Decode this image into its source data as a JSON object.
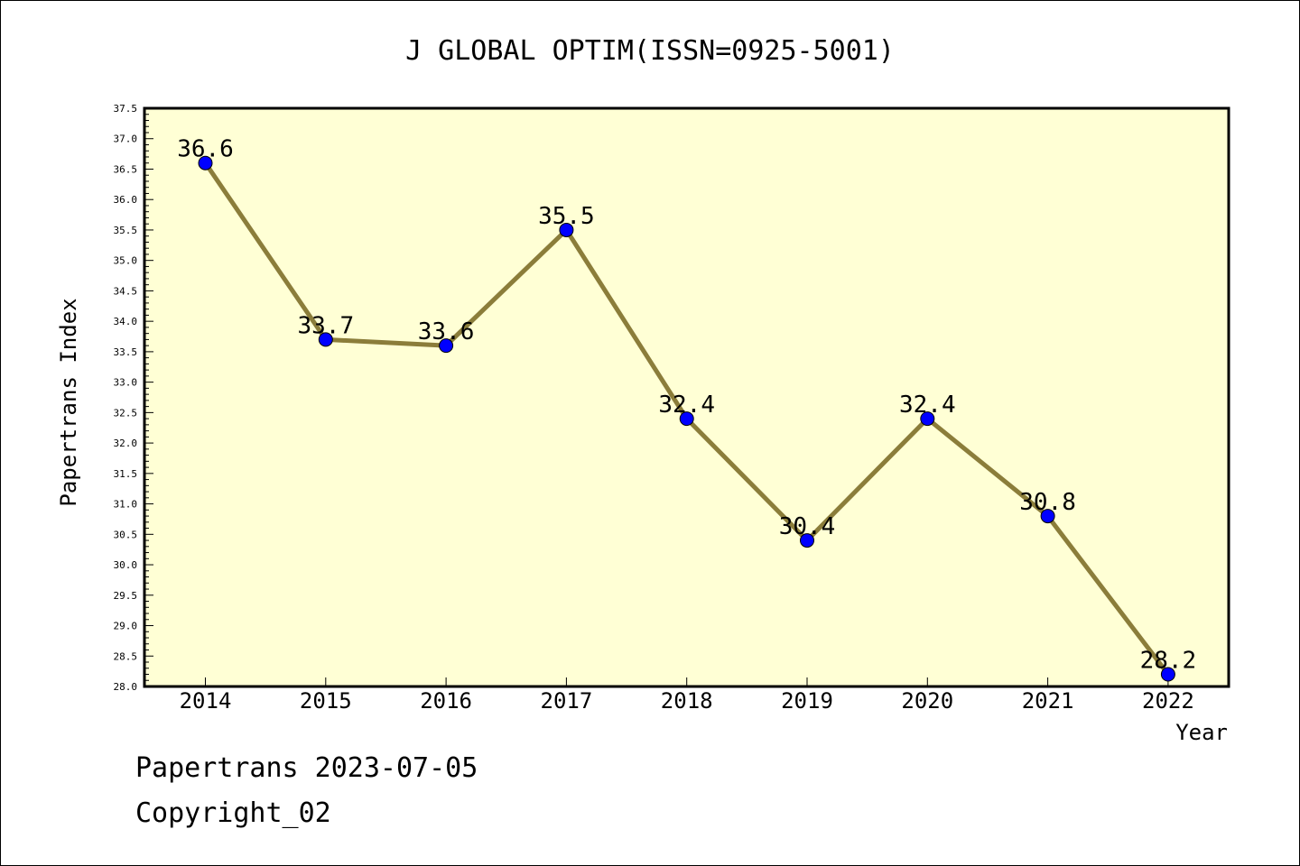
{
  "chart_data": {
    "type": "line",
    "title": "J GLOBAL OPTIM(ISSN=0925-5001)",
    "xlabel": "Year",
    "ylabel": "Papertrans Index",
    "x": [
      "2014",
      "2015",
      "2016",
      "2017",
      "2018",
      "2019",
      "2020",
      "2021",
      "2022"
    ],
    "values": [
      36.6,
      33.7,
      33.6,
      35.5,
      32.4,
      30.4,
      32.4,
      30.8,
      28.2
    ],
    "data_labels": [
      "36.6",
      "33.7",
      "33.6",
      "35.5",
      "32.4",
      "30.4",
      "32.4",
      "30.8",
      "28.2"
    ],
    "ylim": [
      28.0,
      37.5
    ],
    "y_ticks": [
      "28.0",
      "28.5",
      "29.0",
      "29.5",
      "30.0",
      "30.5",
      "31.0",
      "31.5",
      "32.0",
      "32.5",
      "33.0",
      "33.5",
      "34.0",
      "34.5",
      "35.0",
      "35.5",
      "36.0",
      "36.5",
      "37.0",
      "37.5"
    ],
    "grid": false,
    "legend": "none",
    "colors": {
      "line": "#8b7d3a",
      "marker": "#0000ff",
      "plot_background": "#ffffd5"
    }
  },
  "footer": {
    "line1": "Papertrans 2023-07-05",
    "line2": "Copyright_02"
  }
}
